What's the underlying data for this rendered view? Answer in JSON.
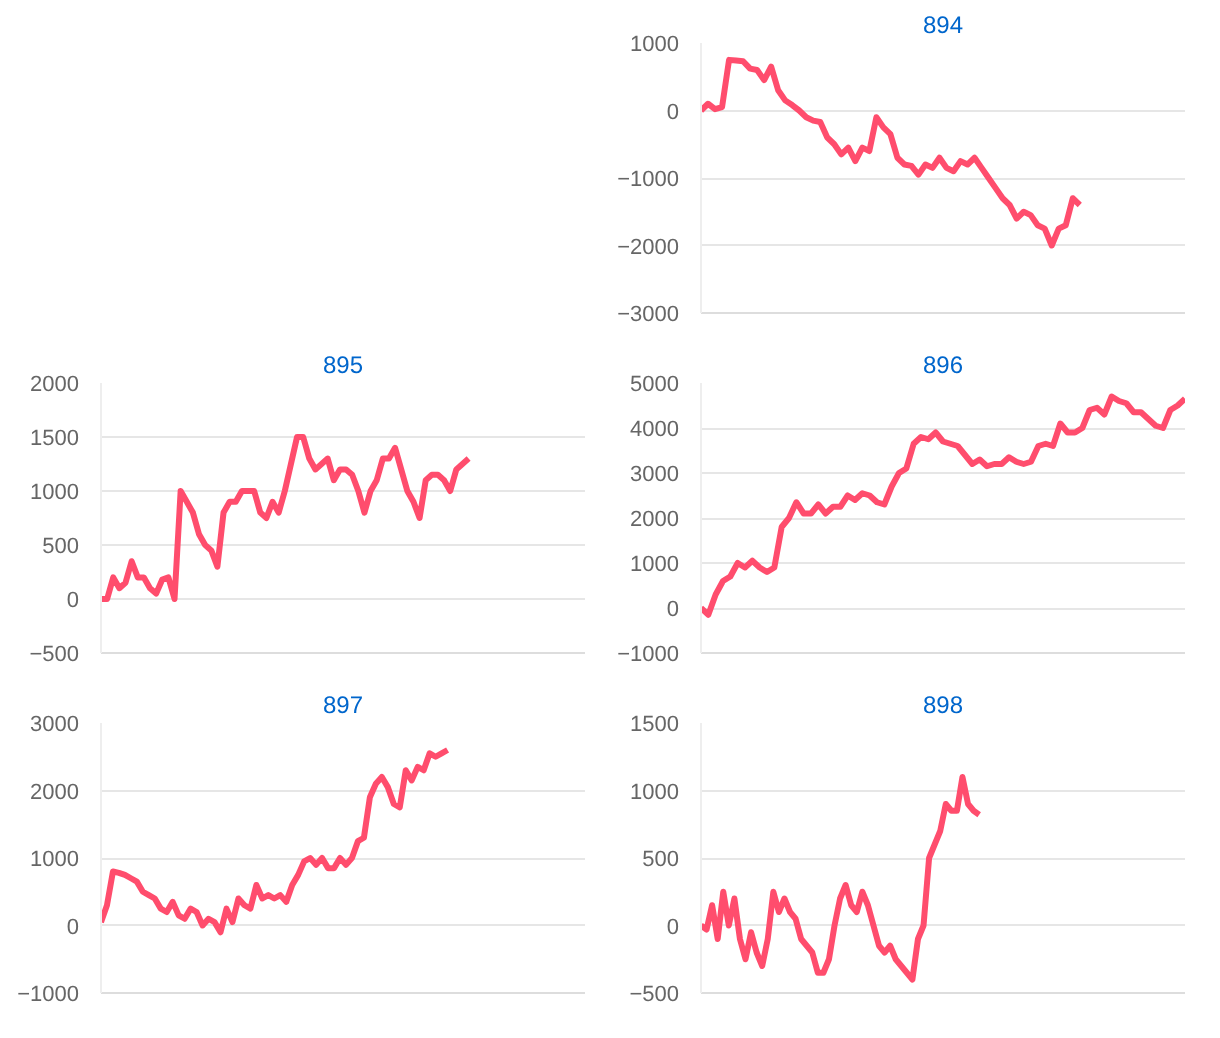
{
  "chart_data": [
    {
      "type": "line",
      "title": "894",
      "color": "#ff4d6d",
      "grid": "y",
      "ylim": [
        -3000,
        1000
      ],
      "yticks": [
        -3000,
        -2000,
        -1000,
        0,
        1000
      ],
      "categories": [
        null,
        null,
        null,
        null,
        null,
        null,
        null,
        null,
        null,
        null,
        null,
        null,
        null,
        null,
        null,
        null,
        null,
        null,
        null,
        null,
        null,
        null,
        null,
        null,
        null,
        null,
        null,
        null,
        null,
        null,
        null,
        null,
        null,
        null,
        null,
        null,
        null,
        null,
        null,
        null,
        null,
        null,
        null,
        null,
        null,
        null,
        null,
        null,
        null,
        null,
        null,
        null,
        null,
        null,
        null,
        null,
        null,
        null,
        null,
        null,
        null,
        null,
        null,
        null,
        null,
        null,
        null,
        null,
        null,
        null
      ],
      "values": [
        0,
        100,
        20,
        50,
        750,
        740,
        730,
        620,
        600,
        450,
        650,
        300,
        150,
        80,
        0,
        -100,
        -150,
        -170,
        -400,
        -500,
        -650,
        -550,
        -750,
        -550,
        -600,
        -100,
        -250,
        -350,
        -700,
        -800,
        -820,
        -950,
        -800,
        -850,
        -700,
        -850,
        -900,
        -750,
        -800,
        -700,
        -850,
        -1000,
        -1150,
        -1300,
        -1400,
        -1600,
        -1500,
        -1550,
        -1700,
        -1750,
        -2000,
        -1750,
        -1700,
        -1300,
        -1400,
        null,
        null,
        null,
        null,
        null,
        null,
        null,
        null,
        null,
        null,
        null,
        null,
        null,
        null,
        null
      ]
    },
    {
      "type": "line",
      "title": "895",
      "color": "#ff4d6d",
      "grid": "y",
      "ylim": [
        -500,
        2000
      ],
      "yticks": [
        -500,
        0,
        500,
        1000,
        1500,
        2000
      ],
      "categories": [
        null,
        null,
        null,
        null,
        null,
        null,
        null,
        null,
        null,
        null,
        null,
        null,
        null,
        null,
        null,
        null,
        null,
        null,
        null,
        null,
        null,
        null,
        null,
        null,
        null,
        null,
        null,
        null,
        null,
        null,
        null,
        null,
        null,
        null,
        null,
        null,
        null,
        null,
        null,
        null,
        null,
        null,
        null,
        null,
        null,
        null,
        null,
        null,
        null,
        null,
        null,
        null,
        null,
        null,
        null,
        null,
        null,
        null,
        null,
        null,
        null,
        null,
        null,
        null,
        null,
        null,
        null,
        null,
        null,
        null,
        null,
        null,
        null,
        null,
        null,
        null,
        null,
        null,
        null,
        null
      ],
      "values": [
        0,
        0,
        200,
        100,
        150,
        350,
        200,
        200,
        100,
        50,
        180,
        200,
        0,
        1000,
        900,
        800,
        600,
        500,
        450,
        300,
        800,
        900,
        900,
        1000,
        1000,
        1000,
        800,
        750,
        900,
        800,
        1000,
        1250,
        1500,
        1500,
        1300,
        1200,
        1250,
        1300,
        1100,
        1200,
        1200,
        1150,
        1000,
        800,
        1000,
        1100,
        1300,
        1300,
        1400,
        1200,
        1000,
        900,
        750,
        1100,
        1150,
        1150,
        1100,
        1000,
        1200,
        1250,
        1300,
        null,
        null,
        null,
        null,
        null,
        null,
        null,
        null,
        null,
        null,
        null,
        null,
        null,
        null,
        null,
        null,
        null,
        null,
        null
      ]
    },
    {
      "type": "line",
      "title": "896",
      "color": "#ff4d6d",
      "grid": "y",
      "ylim": [
        -1000,
        5000
      ],
      "yticks": [
        -1000,
        0,
        1000,
        2000,
        3000,
        4000,
        5000
      ],
      "categories": [
        null,
        null,
        null,
        null,
        null,
        null,
        null,
        null,
        null,
        null,
        null,
        null,
        null,
        null,
        null,
        null,
        null,
        null,
        null,
        null,
        null,
        null,
        null,
        null,
        null,
        null,
        null,
        null,
        null,
        null,
        null,
        null,
        null,
        null,
        null,
        null,
        null,
        null,
        null,
        null,
        null,
        null,
        null,
        null,
        null,
        null,
        null,
        null,
        null,
        null,
        null,
        null,
        null,
        null,
        null,
        null,
        null,
        null,
        null,
        null,
        null,
        null,
        null,
        null,
        null,
        null,
        null
      ],
      "values": [
        0,
        -150,
        300,
        600,
        700,
        1000,
        900,
        1050,
        900,
        800,
        900,
        1800,
        2000,
        2350,
        2100,
        2100,
        2300,
        2100,
        2250,
        2250,
        2500,
        2400,
        2550,
        2500,
        2350,
        2300,
        2700,
        3000,
        3100,
        3650,
        3800,
        3750,
        3900,
        3700,
        3650,
        3600,
        3400,
        3200,
        3300,
        3150,
        3200,
        3200,
        3350,
        3250,
        3200,
        3250,
        3600,
        3650,
        3600,
        4100,
        3900,
        3900,
        4000,
        4400,
        4450,
        4300,
        4700,
        4600,
        4550,
        4350,
        4350,
        4200,
        4050,
        4000,
        4400,
        4500,
        4650
      ]
    },
    {
      "type": "line",
      "title": "897",
      "color": "#ff4d6d",
      "grid": "y",
      "ylim": [
        -1000,
        3000
      ],
      "yticks": [
        -1000,
        0,
        1000,
        2000,
        3000
      ],
      "categories": [
        null,
        null,
        null,
        null,
        null,
        null,
        null,
        null,
        null,
        null,
        null,
        null,
        null,
        null,
        null,
        null,
        null,
        null,
        null,
        null,
        null,
        null,
        null,
        null,
        null,
        null,
        null,
        null,
        null,
        null,
        null,
        null,
        null,
        null,
        null,
        null,
        null,
        null,
        null,
        null,
        null,
        null,
        null,
        null,
        null,
        null,
        null,
        null,
        null,
        null,
        null,
        null,
        null,
        null,
        null,
        null,
        null,
        null,
        null,
        null,
        null,
        null,
        null,
        null,
        null,
        null,
        null,
        null,
        null,
        null,
        null,
        null,
        null,
        null,
        null,
        null,
        null,
        null,
        null,
        null,
        null,
        null
      ],
      "values": [
        50,
        300,
        800,
        780,
        750,
        700,
        650,
        500,
        450,
        400,
        250,
        200,
        350,
        150,
        100,
        250,
        200,
        0,
        100,
        50,
        -100,
        250,
        50,
        400,
        300,
        250,
        600,
        400,
        450,
        400,
        450,
        350,
        600,
        750,
        950,
        1000,
        900,
        1000,
        850,
        850,
        1000,
        900,
        1000,
        1250,
        1300,
        1900,
        2100,
        2200,
        2050,
        1800,
        1750,
        2300,
        2150,
        2350,
        2300,
        2550,
        2500,
        2550,
        2600,
        null,
        null,
        null,
        null,
        null,
        null,
        null,
        null,
        null,
        null,
        null,
        null,
        null,
        null,
        null,
        null,
        null,
        null,
        null,
        null,
        null,
        null,
        null
      ]
    },
    {
      "type": "line",
      "title": "898",
      "color": "#ff4d6d",
      "grid": "y",
      "ylim": [
        -500,
        1500
      ],
      "yticks": [
        -500,
        0,
        500,
        1000,
        1500
      ],
      "categories": [
        null,
        null,
        null,
        null,
        null,
        null,
        null,
        null,
        null,
        null,
        null,
        null,
        null,
        null,
        null,
        null,
        null,
        null,
        null,
        null,
        null,
        null,
        null,
        null,
        null,
        null,
        null,
        null,
        null,
        null,
        null,
        null,
        null,
        null,
        null,
        null,
        null,
        null,
        null,
        null,
        null,
        null,
        null,
        null,
        null,
        null,
        null,
        null,
        null,
        null,
        null,
        null,
        null,
        null,
        null,
        null,
        null,
        null,
        null,
        null,
        null,
        null,
        null,
        null,
        null,
        null,
        null,
        null,
        null,
        null,
        null,
        null,
        null,
        null,
        null,
        null,
        null,
        null,
        null,
        null,
        null,
        null,
        null,
        null,
        null,
        null,
        null,
        null
      ],
      "values": [
        0,
        -30,
        150,
        -100,
        250,
        0,
        200,
        -100,
        -250,
        -50,
        -200,
        -300,
        -100,
        250,
        100,
        200,
        100,
        50,
        -100,
        -150,
        -200,
        -350,
        -350,
        -250,
        0,
        200,
        300,
        150,
        100,
        250,
        150,
        0,
        -150,
        -200,
        -150,
        -250,
        -300,
        -350,
        -400,
        -100,
        0,
        500,
        600,
        700,
        900,
        850,
        850,
        1100,
        900,
        850,
        820,
        null,
        null,
        null,
        null,
        null,
        null,
        null,
        null,
        null,
        null,
        null,
        null,
        null,
        null,
        null,
        null,
        null,
        null,
        null,
        null,
        null,
        null,
        null,
        null,
        null,
        null,
        null,
        null,
        null,
        null,
        null,
        null,
        null,
        null,
        null,
        null,
        null
      ]
    }
  ]
}
